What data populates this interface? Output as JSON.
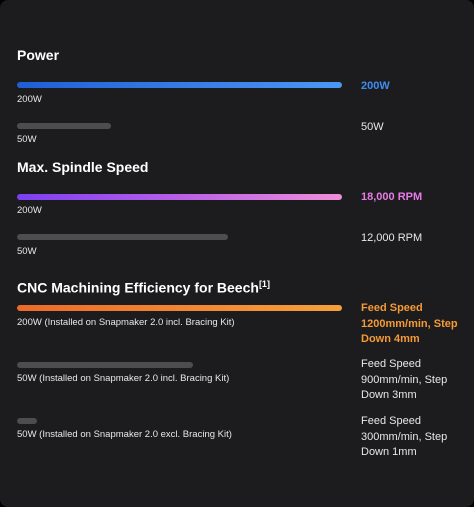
{
  "colors": {
    "background": "#1c1c1e",
    "power_accent": "#3f8cf0",
    "spindle_accent": "#e77ce6",
    "cnc_accent": "#f59a35",
    "inactive_bar": "#4d4d50",
    "text": "#e8e8e8"
  },
  "sections": [
    {
      "title": "Power",
      "rows": [
        {
          "label": "200W",
          "value": "200W",
          "fill": 1.0,
          "highlight": true
        },
        {
          "label": "50W",
          "value": "50W",
          "fill": 0.29,
          "highlight": false
        }
      ]
    },
    {
      "title": "Max. Spindle Speed",
      "rows": [
        {
          "label": "200W",
          "value": "18,000 RPM",
          "fill": 1.0,
          "highlight": true
        },
        {
          "label": "50W",
          "value": "12,000 RPM",
          "fill": 0.65,
          "highlight": false
        }
      ]
    },
    {
      "title": "CNC Machining Efficiency for Beech",
      "footnote": "[1]",
      "rows": [
        {
          "label": "200W (Installed on Snapmaker 2.0 incl. Bracing Kit)",
          "value": "Feed Speed 1200mm/min, Step Down 4mm",
          "fill": 1.0,
          "highlight": true
        },
        {
          "label": "50W (Installed on Snapmaker 2.0 incl. Bracing Kit)",
          "value": "Feed Speed 900mm/min, Step Down 3mm",
          "fill": 0.54,
          "highlight": false
        },
        {
          "label": "50W (Installed on Snapmaker 2.0 excl. Bracing Kit)",
          "value": "Feed Speed 300mm/min, Step Down 1mm",
          "fill": 0.06,
          "highlight": false
        }
      ]
    }
  ]
}
